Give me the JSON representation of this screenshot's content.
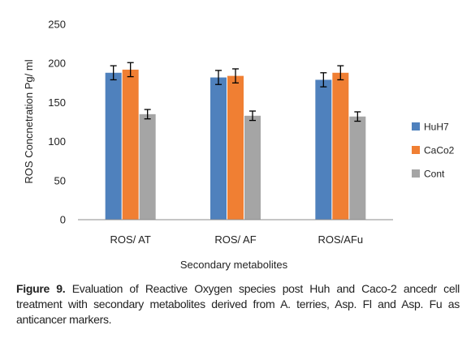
{
  "chart_data": {
    "type": "bar",
    "categories": [
      "ROS/ AT",
      "ROS/ AF",
      "ROS/AFu"
    ],
    "series": [
      {
        "name": "HuH7",
        "color": "#4f81bd",
        "values": [
          188,
          182,
          179
        ],
        "errors": [
          9,
          9,
          9
        ]
      },
      {
        "name": "CaCo2",
        "color": "#f07f33",
        "values": [
          192,
          184,
          188
        ],
        "errors": [
          9,
          9,
          9
        ]
      },
      {
        "name": "Cont",
        "color": "#a5a5a5",
        "values": [
          135,
          133,
          132
        ],
        "errors": [
          6,
          6,
          6
        ]
      }
    ],
    "xlabel": "Secondary metabolites",
    "ylabel": "ROS Concnetration Pg/ ml",
    "ylim": [
      0,
      250
    ],
    "yticks": [
      0,
      50,
      100,
      150,
      200,
      250
    ],
    "grid": false,
    "legend": "right"
  },
  "caption": {
    "label": "Figure 9.",
    "text": "Evaluation of Reactive Oxygen species post Huh and Caco-2 ancedr cell treatment with secondary metabolites derived from A. terries, Asp. Fl and Asp. Fu as anticancer markers."
  }
}
